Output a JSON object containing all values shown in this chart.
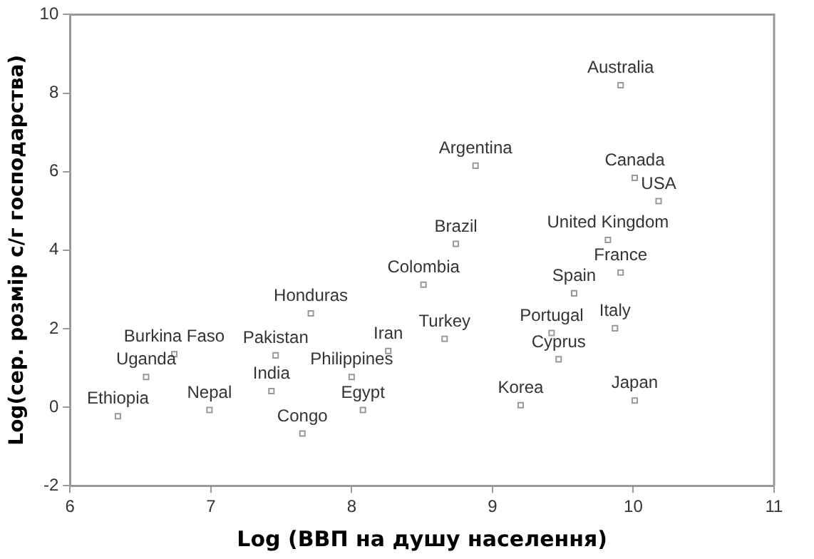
{
  "chart_data": {
    "type": "scatter",
    "xlabel": "Log (ВВП на душу населення)",
    "ylabel": "Log(сер. розмір с/г господарства)",
    "xlim": [
      6,
      11
    ],
    "xticks": [
      6,
      7,
      8,
      9,
      10,
      11
    ],
    "ylim": [
      -2,
      10
    ],
    "yticks": [
      -2,
      0,
      2,
      4,
      6,
      8,
      10
    ],
    "grid": false,
    "legend": false,
    "marker": "square",
    "series": [
      {
        "color": "#999999",
        "x": [
          9.91,
          8.88,
          10.01,
          10.18,
          8.74,
          9.82,
          9.91,
          8.51,
          9.58,
          8.66,
          9.42,
          9.87,
          9.47,
          9.2,
          10.01,
          7.71,
          6.74,
          6.54,
          6.34,
          6.99,
          7.46,
          7.43,
          7.65,
          8.26,
          8.0,
          8.08
        ],
        "values": [
          8.2,
          6.15,
          5.84,
          5.25,
          4.16,
          4.26,
          3.43,
          3.12,
          2.9,
          1.74,
          1.89,
          2.01,
          1.22,
          0.05,
          0.17,
          2.39,
          1.35,
          0.77,
          -0.23,
          -0.07,
          1.32,
          0.41,
          -0.67,
          1.43,
          0.77,
          -0.07
        ]
      }
    ],
    "annotations": [
      {
        "text": "Australia",
        "x": 9.91,
        "y": 8.2
      },
      {
        "text": "Argentina",
        "x": 8.88,
        "y": 6.15
      },
      {
        "text": "Canada",
        "x": 10.01,
        "y": 5.84
      },
      {
        "text": "USA",
        "x": 10.18,
        "y": 5.25
      },
      {
        "text": "Brazil",
        "x": 8.74,
        "y": 4.16
      },
      {
        "text": "United Kingdom",
        "x": 9.82,
        "y": 4.26
      },
      {
        "text": "France",
        "x": 9.91,
        "y": 3.43
      },
      {
        "text": "Colombia",
        "x": 8.51,
        "y": 3.12
      },
      {
        "text": "Spain",
        "x": 9.58,
        "y": 2.9
      },
      {
        "text": "Turkey",
        "x": 8.66,
        "y": 1.74
      },
      {
        "text": "Portugal",
        "x": 9.42,
        "y": 1.89
      },
      {
        "text": "Italy",
        "x": 9.87,
        "y": 2.01
      },
      {
        "text": "Cyprus",
        "x": 9.47,
        "y": 1.22
      },
      {
        "text": "Korea",
        "x": 9.2,
        "y": 0.05
      },
      {
        "text": "Japan",
        "x": 10.01,
        "y": 0.17
      },
      {
        "text": "Honduras",
        "x": 7.71,
        "y": 2.39
      },
      {
        "text": "Burkina Faso",
        "x": 6.74,
        "y": 1.35
      },
      {
        "text": "Uganda",
        "x": 6.54,
        "y": 0.77
      },
      {
        "text": "Ethiopia",
        "x": 6.34,
        "y": -0.23
      },
      {
        "text": "Nepal",
        "x": 6.99,
        "y": -0.07
      },
      {
        "text": "Pakistan",
        "x": 7.46,
        "y": 1.32
      },
      {
        "text": "India",
        "x": 7.43,
        "y": 0.41
      },
      {
        "text": "Congo",
        "x": 7.65,
        "y": -0.67
      },
      {
        "text": "Iran",
        "x": 8.26,
        "y": 1.43
      },
      {
        "text": "Philippines",
        "x": 8.0,
        "y": 0.77
      },
      {
        "text": "Egypt",
        "x": 8.08,
        "y": -0.07
      }
    ]
  }
}
